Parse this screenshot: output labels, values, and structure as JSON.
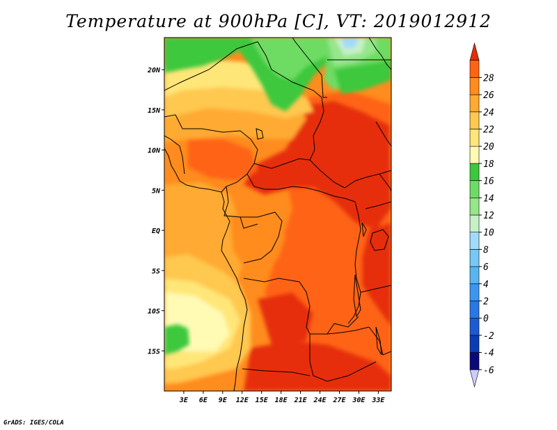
{
  "title": "Temperature at 900hPa [C], VT: 2019012912",
  "credit": "GrADS: IGES/COLA",
  "map": {
    "lon_range": [
      0,
      35
    ],
    "lat_range": [
      -20,
      24
    ],
    "lat_ticks": [
      {
        "value": 20,
        "label": "20N"
      },
      {
        "value": 15,
        "label": "15N"
      },
      {
        "value": 10,
        "label": "10N"
      },
      {
        "value": 5,
        "label": "5N"
      },
      {
        "value": 0,
        "label": "EQ"
      },
      {
        "value": -5,
        "label": "5S"
      },
      {
        "value": -10,
        "label": "10S"
      },
      {
        "value": -15,
        "label": "15S"
      }
    ],
    "lon_ticks": [
      {
        "value": 3,
        "label": "3E"
      },
      {
        "value": 6,
        "label": "6E"
      },
      {
        "value": 9,
        "label": "9E"
      },
      {
        "value": 12,
        "label": "12E"
      },
      {
        "value": 15,
        "label": "15E"
      },
      {
        "value": 18,
        "label": "18E"
      },
      {
        "value": 21,
        "label": "21E"
      },
      {
        "value": 24,
        "label": "24E"
      },
      {
        "value": 27,
        "label": "27E"
      },
      {
        "value": 30,
        "label": "30E"
      },
      {
        "value": 33,
        "label": "33E"
      }
    ]
  },
  "colorbar": {
    "levels": [
      -6,
      -4,
      -2,
      0,
      2,
      4,
      6,
      8,
      10,
      12,
      14,
      16,
      18,
      20,
      22,
      24,
      26,
      28
    ],
    "colors": [
      "#ccccff",
      "#0a0a78",
      "#0a3cb4",
      "#1e5ad2",
      "#2878e6",
      "#3c96f0",
      "#5ab4f0",
      "#78c8f5",
      "#a0dcfa",
      "#c8f0c8",
      "#96e68c",
      "#6edc64",
      "#3cc83c",
      "#fffab4",
      "#ffe678",
      "#ffc850",
      "#ffaa32",
      "#ff8c1e",
      "#ff6414",
      "#e62d0a"
    ]
  }
}
